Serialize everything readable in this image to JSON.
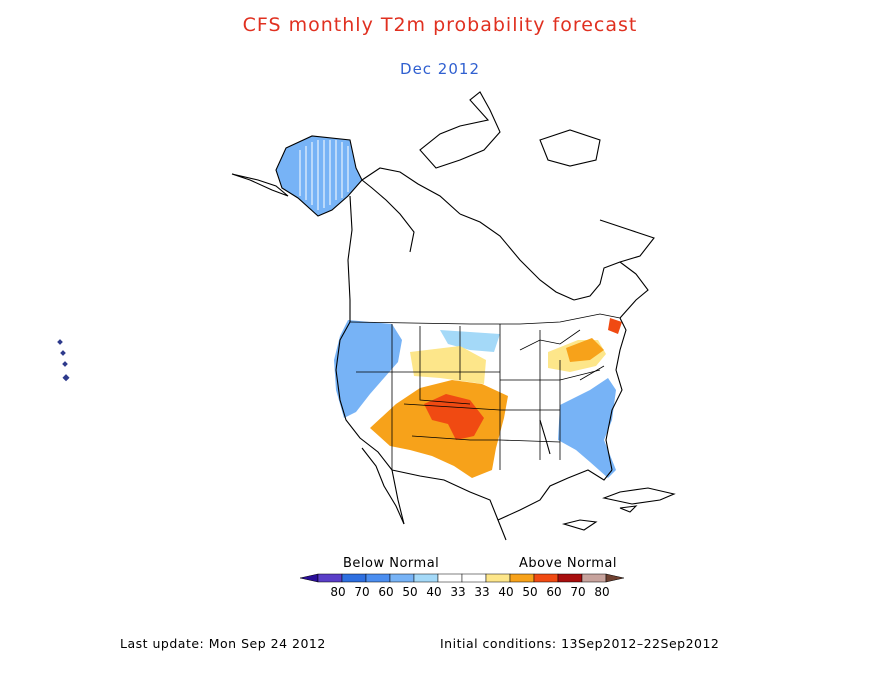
{
  "title": "CFS monthly T2m probability forecast",
  "subtitle": "Dec 2012",
  "colors": {
    "title": "#e03020",
    "subtitle": "#3060d0"
  },
  "legend": {
    "below_label": "Below Normal",
    "above_label": "Above Normal",
    "swatches": [
      {
        "color": "#5a3ec8"
      },
      {
        "color": "#2e6fe0"
      },
      {
        "color": "#4b8ef0"
      },
      {
        "color": "#77b3f6"
      },
      {
        "color": "#a4d9f8"
      },
      {
        "color": "#ffffff"
      },
      {
        "color": "#ffffff"
      },
      {
        "color": "#fde68a"
      },
      {
        "color": "#f7a21a"
      },
      {
        "color": "#f04a12"
      },
      {
        "color": "#a80e0e"
      },
      {
        "color": "#c7a39d"
      }
    ],
    "left_arrow_color": "#2a0e98",
    "right_arrow_color": "#6e4030",
    "ticks": [
      "80",
      "70",
      "60",
      "50",
      "40",
      "33",
      "33",
      "40",
      "50",
      "60",
      "70",
      "80"
    ]
  },
  "footer": {
    "last_update_label": "Last update:",
    "last_update_value": "Mon Sep 24 2012",
    "initial_label": "Initial conditions:",
    "initial_value": "13Sep2012–22Sep2012"
  }
}
